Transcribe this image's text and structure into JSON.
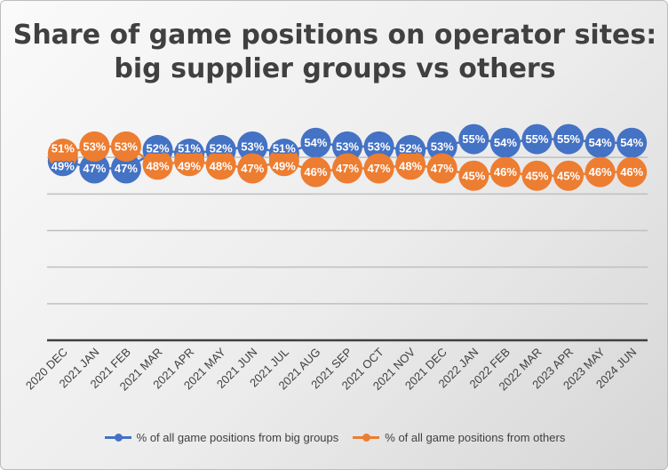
{
  "chart_data": {
    "type": "line",
    "title": "Share of game positions on operator sites: big supplier groups vs others",
    "categories": [
      "2020 DEC",
      "2021 JAN",
      "2021 FEB",
      "2021 MAR",
      "2021 APR",
      "2021 MAY",
      "2021 JUN",
      "2021 JUL",
      "2021 AUG",
      "2021 SEP",
      "2021 OCT",
      "2021 NOV",
      "2021 DEC",
      "2022 JAN",
      "2022 FEB",
      "2022 MAR",
      "2023 APR",
      "2023 MAY",
      "2024 JUN"
    ],
    "series": [
      {
        "name": "% of all game positions from big groups",
        "color": "#4472C4",
        "values": [
          49,
          47,
          47,
          52,
          51,
          52,
          53,
          51,
          54,
          53,
          53,
          52,
          53,
          55,
          54,
          55,
          55,
          54,
          54
        ]
      },
      {
        "name": "% of all game positions from others",
        "color": "#ED7D31",
        "values": [
          51,
          53,
          53,
          48,
          49,
          48,
          47,
          49,
          46,
          47,
          47,
          48,
          47,
          45,
          46,
          45,
          45,
          46,
          46
        ]
      }
    ],
    "ylim": [
      0,
      60
    ],
    "y_major": 10,
    "y_tick_labels_shown": false,
    "grid": true,
    "legend": "bottom",
    "data_labels": "percent"
  }
}
